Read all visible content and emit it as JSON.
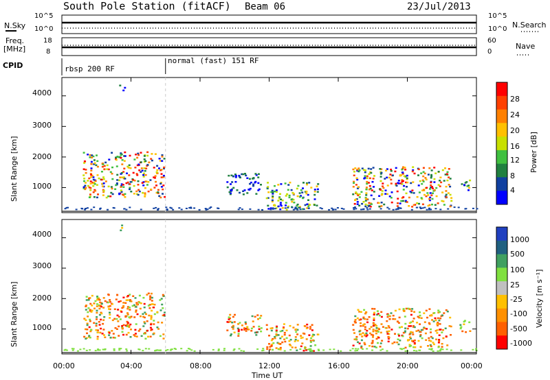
{
  "header": {
    "title": "South Pole Station (fitACF)",
    "beam": "Beam 06",
    "date": "23/Jul/2013"
  },
  "top_panels": {
    "nsky_label": "N.Sky",
    "nsky_ticks": [
      "10^5",
      "10^0"
    ],
    "nsearch_label": "N.Search",
    "nsearch_ticks": [
      "10^5",
      "10^0"
    ],
    "freq_label": "Freq.",
    "freq_unit": "[MHz]",
    "freq_ticks": [
      "18",
      "8"
    ],
    "nave_label": "Nave",
    "nave_ticks": [
      "60",
      "0"
    ],
    "cpid_label": "CPID",
    "cpid_segments": [
      {
        "label": "rbsp 200 RF",
        "start_hour": 0
      },
      {
        "label": "normal (fast) 151 RF",
        "start_hour": 6
      }
    ]
  },
  "axes": {
    "y_label": "Slant Range [km]",
    "y_ticks": [
      "4000",
      "3000",
      "2000",
      "1000"
    ],
    "x_label": "Time UT",
    "x_ticks": [
      "00:00",
      "04:00",
      "08:00",
      "12:00",
      "16:00",
      "20:00",
      "00:00"
    ]
  },
  "power_bar": {
    "label": "Power [dB]",
    "ticks": [
      "28",
      "24",
      "20",
      "16",
      "12",
      "8",
      "4"
    ],
    "colors": [
      "#ff0000",
      "#ff4000",
      "#ff8000",
      "#ffc000",
      "#c8e000",
      "#40c040",
      "#208040",
      "#1040a0",
      "#0000ff"
    ]
  },
  "velocity_bar": {
    "label": "Velocity [m s⁻¹]",
    "ticks": [
      "1000",
      "500",
      "100",
      "25",
      "-25",
      "-100",
      "-500",
      "-1000"
    ],
    "colors": [
      "#2040c0",
      "#206080",
      "#40a060",
      "#80e040",
      "#c0c0c0",
      "#ffc000",
      "#ff9000",
      "#ff6000",
      "#ff0000"
    ]
  },
  "chart_data": {
    "type": "heatmap",
    "x_unit": "hours UT",
    "x_range": [
      0,
      24
    ],
    "y_range": [
      180,
      4600
    ],
    "power_patches": [
      {
        "x0": 1.2,
        "x1": 5.9,
        "y0": 700,
        "y1": 2200,
        "level": "high"
      },
      {
        "x0": 3.3,
        "x1": 3.6,
        "y0": 4200,
        "y1": 4450,
        "level": "low"
      },
      {
        "x0": 9.5,
        "x1": 11.5,
        "y0": 800,
        "y1": 1500,
        "level": "low"
      },
      {
        "x0": 11.8,
        "x1": 14.8,
        "y0": 300,
        "y1": 1200,
        "level": "mid"
      },
      {
        "x0": 16.8,
        "x1": 22.5,
        "y0": 400,
        "y1": 1700,
        "level": "high"
      },
      {
        "x0": 23.0,
        "x1": 23.6,
        "y0": 900,
        "y1": 1300,
        "level": "mid"
      }
    ]
  }
}
